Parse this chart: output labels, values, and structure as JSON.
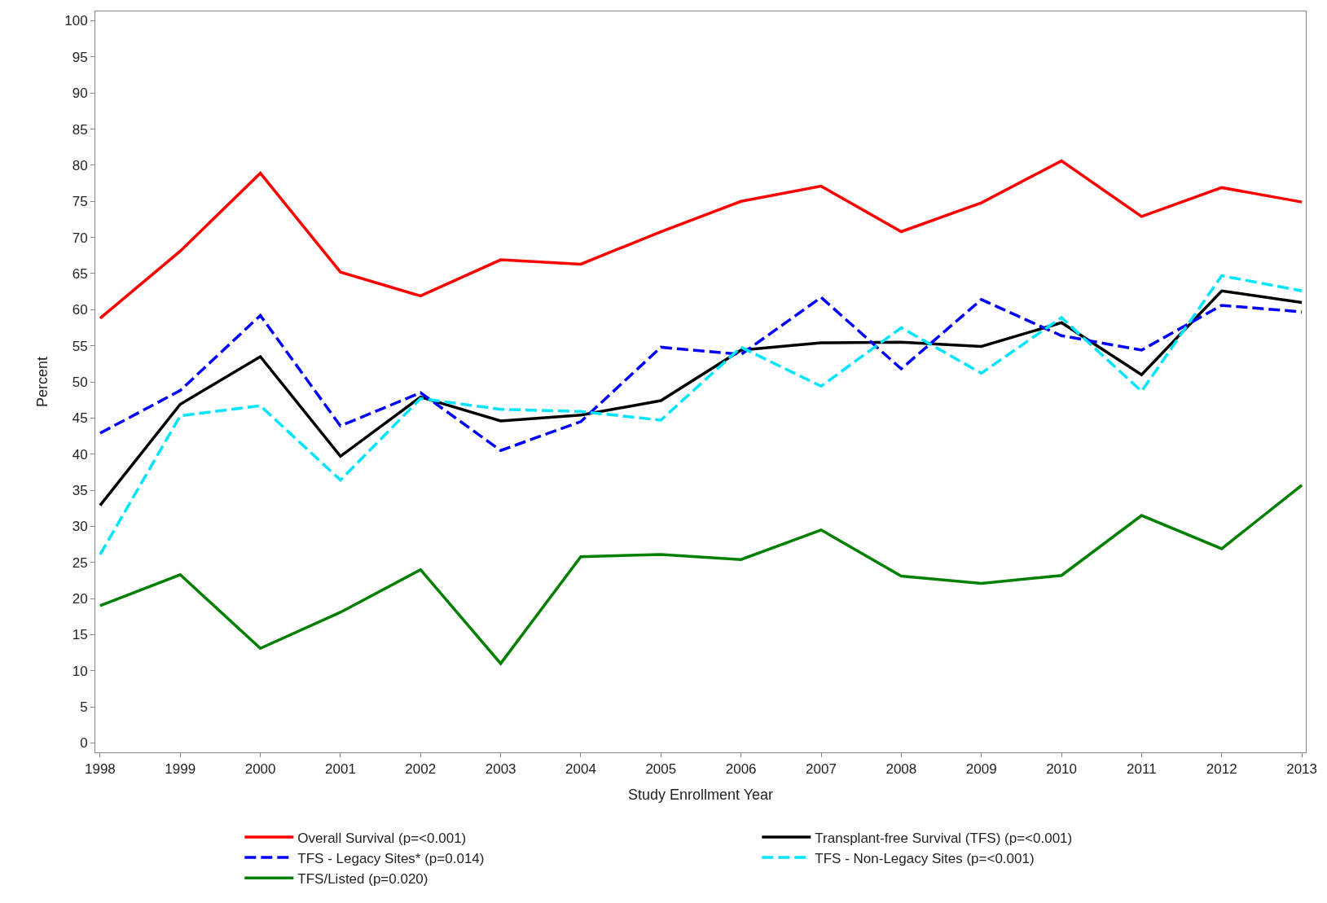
{
  "chart_data": {
    "type": "line",
    "xlabel": "Study Enrollment Year",
    "ylabel": "Percent",
    "x": [
      1998,
      1999,
      2000,
      2001,
      2002,
      2003,
      2004,
      2005,
      2006,
      2007,
      2008,
      2009,
      2010,
      2011,
      2012,
      2013
    ],
    "series": [
      {
        "name": "Overall Survival (p=<0.001)",
        "color": "#ff0000",
        "line_style": "solid",
        "values": [
          58.8,
          68.1,
          78.9,
          65.2,
          61.9,
          66.9,
          66.3,
          70.8,
          75.0,
          77.1,
          70.8,
          74.8,
          80.6,
          72.9,
          76.9,
          74.9
        ]
      },
      {
        "name": "Transplant-free Survival (TFS) (p=<0.001)",
        "color": "#000000",
        "line_style": "solid",
        "values": [
          32.9,
          46.9,
          53.5,
          39.7,
          47.9,
          44.6,
          45.4,
          47.4,
          54.4,
          55.4,
          55.5,
          54.9,
          58.2,
          51.0,
          62.6,
          61.0
        ]
      },
      {
        "name": "TFS - Legacy Sites* (p=0.014)",
        "color": "#0000ff",
        "line_style": "dashed",
        "values": [
          42.9,
          48.8,
          59.2,
          43.9,
          48.5,
          40.5,
          44.5,
          54.8,
          53.8,
          61.7,
          51.8,
          61.4,
          56.4,
          54.4,
          60.6,
          59.7
        ]
      },
      {
        "name": "TFS - Non-Legacy Sites (p=<0.001)",
        "color": "#00e5ff",
        "line_style": "dashed",
        "values": [
          26.1,
          45.3,
          46.7,
          36.4,
          47.7,
          46.2,
          45.9,
          44.7,
          54.8,
          49.4,
          57.5,
          51.2,
          58.9,
          48.7,
          64.7,
          62.6
        ]
      },
      {
        "name": "TFS/Listed (p=0.020)",
        "color": "#008000",
        "line_style": "solid",
        "values": [
          19.0,
          23.3,
          13.1,
          18.1,
          24.0,
          11.0,
          25.8,
          26.1,
          25.4,
          29.5,
          23.1,
          22.1,
          23.2,
          31.5,
          26.9,
          35.7
        ]
      }
    ],
    "xlim": [
      1997.94,
      2013.05
    ],
    "xticks": [
      1998,
      1999,
      2000,
      2001,
      2002,
      2003,
      2004,
      2005,
      2006,
      2007,
      2008,
      2009,
      2010,
      2011,
      2012,
      2013
    ],
    "ylim": [
      -1.3,
      101.3
    ],
    "yticks": [
      0,
      5,
      10,
      15,
      20,
      25,
      30,
      35,
      40,
      45,
      50,
      55,
      60,
      65,
      70,
      75,
      80,
      85,
      90,
      95,
      100
    ],
    "legend": "bottom",
    "marker": "none"
  }
}
